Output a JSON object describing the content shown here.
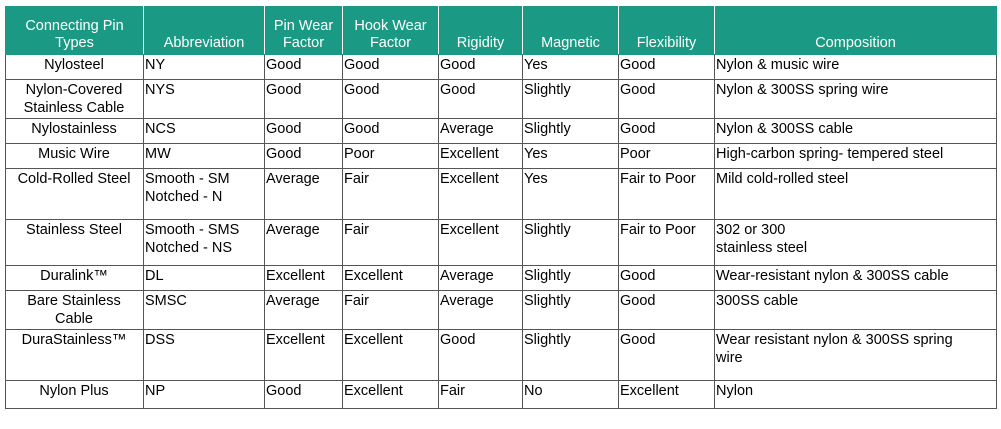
{
  "headers": [
    [
      "Connecting Pin",
      "Types"
    ],
    [
      "Abbreviation"
    ],
    [
      "Pin Wear",
      "Factor"
    ],
    [
      "Hook Wear",
      "Factor"
    ],
    [
      "Rigidity"
    ],
    [
      "Magnetic"
    ],
    [
      "Flexibility"
    ],
    [
      "Composition"
    ]
  ],
  "rows": [
    {
      "type": [
        "Nylosteel"
      ],
      "abbr": [
        "NY"
      ],
      "pin": "Good",
      "hook": "Good",
      "rigidity": "Good",
      "magnetic": "Yes",
      "flex": "Good",
      "comp": [
        "Nylon & music wire"
      ]
    },
    {
      "type": [
        "Nylon-Covered",
        "Stainless Cable"
      ],
      "abbr": [
        "NYS"
      ],
      "pin": "Good",
      "hook": "Good",
      "rigidity": "Good",
      "magnetic": "Slightly",
      "flex": "Good",
      "comp": [
        "Nylon & 300SS spring wire"
      ]
    },
    {
      "type": [
        "Nylostainless"
      ],
      "abbr": [
        "NCS"
      ],
      "pin": "Good",
      "hook": "Good",
      "rigidity": "Average",
      "magnetic": "Slightly",
      "flex": "Good",
      "comp": [
        "Nylon & 300SS cable"
      ]
    },
    {
      "type": [
        "Music Wire"
      ],
      "abbr": [
        "MW"
      ],
      "pin": "Good",
      "hook": "Poor",
      "rigidity": "Excellent",
      "magnetic": "Yes",
      "flex": "Poor",
      "comp": [
        "High-carbon spring- tempered steel"
      ]
    },
    {
      "type": [
        "Cold-Rolled Steel"
      ],
      "abbr": [
        "Smooth - SM",
        "Notched - N"
      ],
      "pin": "Average",
      "hook": "Fair",
      "rigidity": "Excellent",
      "magnetic": "Yes",
      "flex": "Fair to Poor",
      "comp": [
        "Mild cold-rolled steel"
      ]
    },
    {
      "type": [
        "Stainless Steel"
      ],
      "abbr": [
        "Smooth - SMS",
        "Notched - NS"
      ],
      "pin": "Average",
      "hook": "Fair",
      "rigidity": "Excellent",
      "magnetic": "Slightly",
      "flex": "Fair to Poor",
      "comp": [
        "302 or 300",
        "stainless steel"
      ]
    },
    {
      "type": [
        "Duralink™"
      ],
      "abbr": [
        "DL"
      ],
      "pin": "Excellent",
      "hook": "Excellent",
      "rigidity": "Average",
      "magnetic": "Slightly",
      "flex": "Good",
      "comp": [
        "Wear-resistant nylon & 300SS cable"
      ]
    },
    {
      "type": [
        "Bare Stainless",
        "Cable"
      ],
      "abbr": [
        "SMSC"
      ],
      "pin": "Average",
      "hook": "Fair",
      "rigidity": "Average",
      "magnetic": "Slightly",
      "flex": "Good",
      "comp": [
        "300SS cable"
      ]
    },
    {
      "type": [
        "DuraStainless™"
      ],
      "abbr": [
        "DSS"
      ],
      "pin": "Excellent",
      "hook": "Excellent",
      "rigidity": "Good",
      "magnetic": "Slightly",
      "flex": "Good",
      "comp": [
        "Wear resistant nylon & 300SS spring",
        "wire"
      ]
    },
    {
      "type": [
        "Nylon Plus"
      ],
      "abbr": [
        "NP"
      ],
      "pin": "Good",
      "hook": "Excellent",
      "rigidity": "Fair",
      "magnetic": "No",
      "flex": "Excellent",
      "comp": [
        "Nylon"
      ]
    }
  ]
}
